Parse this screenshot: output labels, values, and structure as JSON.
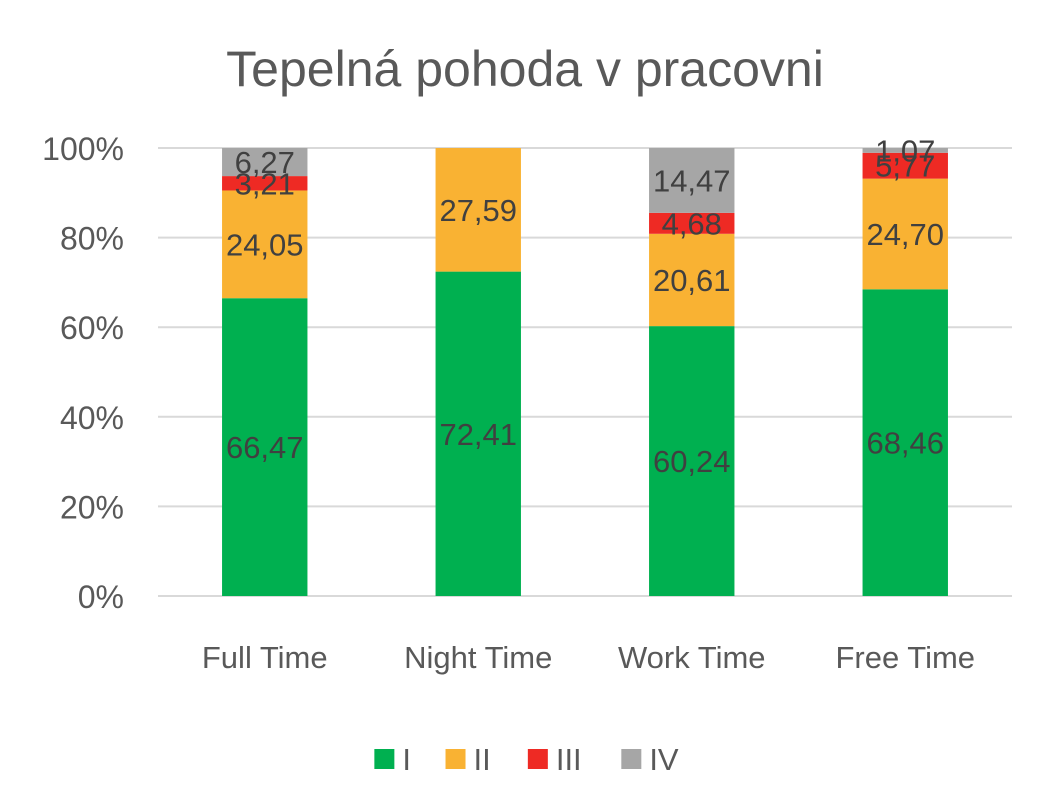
{
  "chart_data": {
    "type": "bar",
    "stacked": true,
    "percent_stacked": true,
    "title": "Tepelná pohoda v pracovni",
    "xlabel": "",
    "ylabel": "",
    "ylim": [
      0,
      100
    ],
    "y_ticks": [
      "0%",
      "20%",
      "40%",
      "60%",
      "80%",
      "100%"
    ],
    "grid": true,
    "legend_position": "bottom",
    "categories": [
      "Full Time",
      "Night Time",
      "Work Time",
      "Free Time"
    ],
    "series": [
      {
        "name": "I",
        "color": "#00B050",
        "values": [
          66.47,
          72.41,
          60.24,
          68.46
        ],
        "labels": [
          "66,47",
          "72,41",
          "60,24",
          "68,46"
        ]
      },
      {
        "name": "II",
        "color": "#F9B233",
        "values": [
          24.05,
          27.59,
          20.61,
          24.7
        ],
        "labels": [
          "24,05",
          "27,59",
          "20,61",
          "24,70"
        ]
      },
      {
        "name": "III",
        "color": "#EE2A24",
        "values": [
          3.21,
          0,
          4.68,
          5.77
        ],
        "labels": [
          "3,21",
          "",
          "4,68",
          "5,77"
        ]
      },
      {
        "name": "IV",
        "color": "#A6A6A6",
        "values": [
          6.27,
          0,
          14.47,
          1.07
        ],
        "labels": [
          "6,27",
          "",
          "14,47",
          "1,07"
        ]
      }
    ]
  }
}
